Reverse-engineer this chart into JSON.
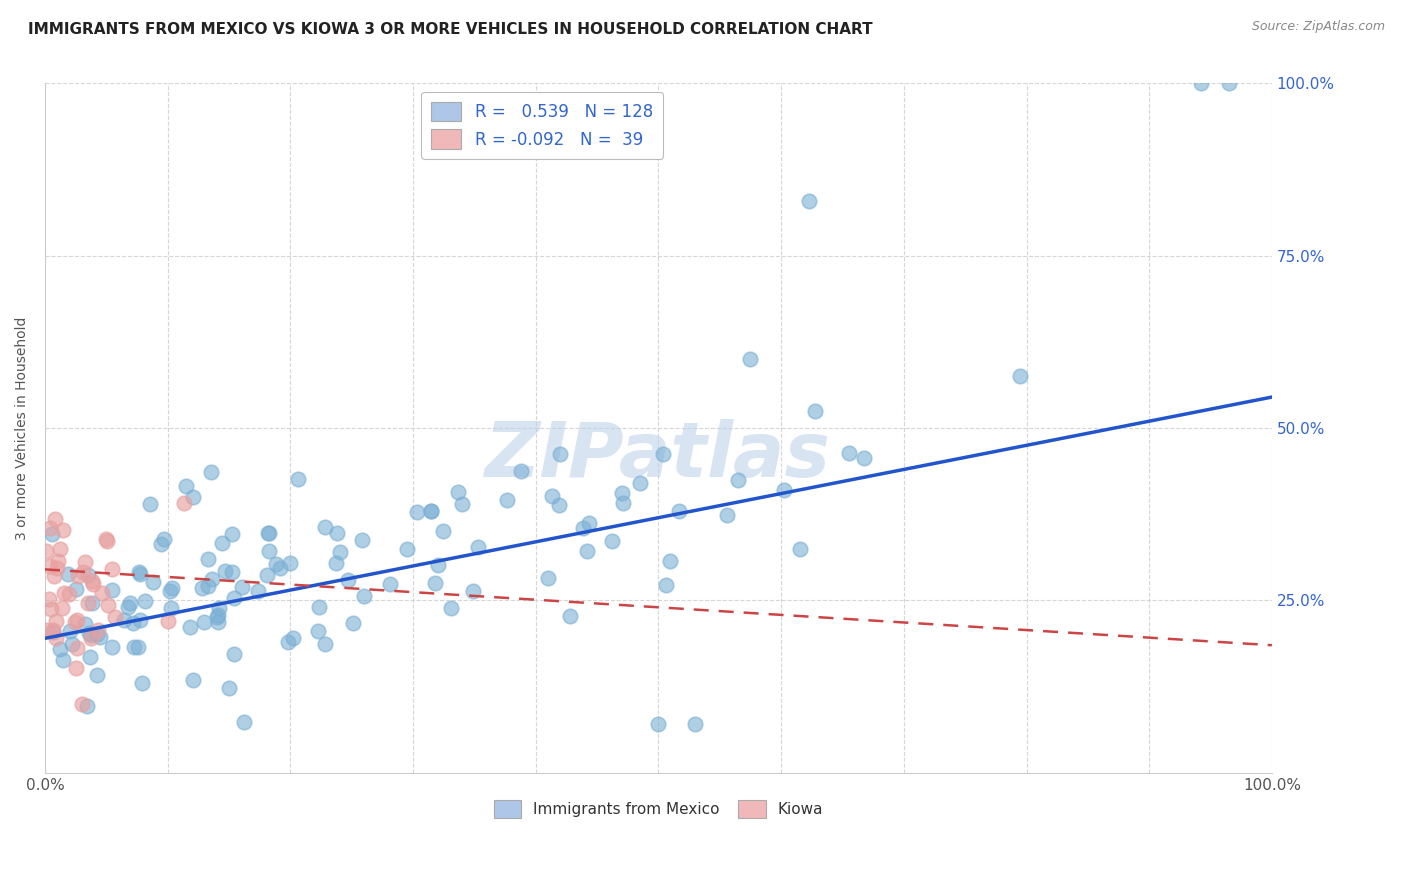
{
  "title": "IMMIGRANTS FROM MEXICO VS KIOWA 3 OR MORE VEHICLES IN HOUSEHOLD CORRELATION CHART",
  "source": "Source: ZipAtlas.com",
  "ylabel": "3 or more Vehicles in Household",
  "legend_label1": "Immigrants from Mexico",
  "legend_label2": "Kiowa",
  "blue_color": "#7bafd4",
  "pink_color": "#e8a0a0",
  "blue_line_color": "#2255cc",
  "pink_line_color": "#cc4444",
  "background": "#ffffff",
  "watermark_text": "ZIPatlas",
  "r_blue": 0.539,
  "n_blue": 128,
  "r_pink": -0.092,
  "n_pink": 39,
  "blue_line_x0": 0.0,
  "blue_line_y0": 0.195,
  "blue_line_x1": 1.0,
  "blue_line_y1": 0.545,
  "pink_line_x0": 0.0,
  "pink_line_y0": 0.295,
  "pink_line_x1": 0.2,
  "pink_line_y1": 0.265,
  "xlim": [
    0.0,
    1.0
  ],
  "ylim": [
    0.0,
    1.0
  ],
  "right_yticks": [
    0.25,
    0.5,
    0.75,
    1.0
  ],
  "right_yticklabels": [
    "25.0%",
    "50.0%",
    "75.0%",
    "100.0%"
  ],
  "grid_color": "#cccccc",
  "title_fontsize": 11,
  "source_fontsize": 9,
  "tick_fontsize": 11,
  "legend_fontsize": 12
}
